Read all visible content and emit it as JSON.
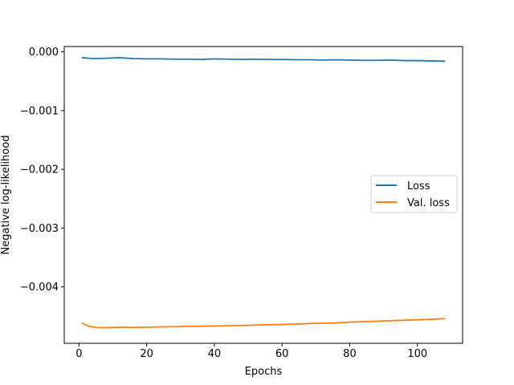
{
  "chart_data": {
    "type": "line",
    "title": "",
    "xlabel": "Epochs",
    "ylabel": "Negative log-likelihood",
    "xlim": [
      -4.35,
      113.35
    ],
    "ylim": [
      -0.00496,
      9e-05
    ],
    "xticks": [
      0,
      20,
      40,
      60,
      80,
      100
    ],
    "xtick_labels": [
      "0",
      "20",
      "40",
      "60",
      "80",
      "100"
    ],
    "yticks": [
      0,
      -0.001,
      -0.002,
      -0.003,
      -0.004
    ],
    "ytick_labels": [
      "0.000",
      "−0.001",
      "−0.002",
      "−0.003",
      "−0.004"
    ],
    "grid": false,
    "legend_position": "center right",
    "series": [
      {
        "name": "Loss",
        "color": "#1f77b4",
        "x": [
          1,
          4,
          8,
          12,
          16,
          20,
          24,
          28,
          32,
          36,
          40,
          44,
          48,
          52,
          56,
          60,
          64,
          68,
          72,
          76,
          80,
          84,
          88,
          92,
          96,
          100,
          104,
          108
        ],
        "y": [
          -0.0001,
          -0.000115,
          -0.00011,
          -0.0001,
          -0.000115,
          -0.00012,
          -0.00012,
          -0.000125,
          -0.000125,
          -0.00013,
          -0.00012,
          -0.000125,
          -0.00013,
          -0.000125,
          -0.00013,
          -0.00013,
          -0.000135,
          -0.000135,
          -0.00014,
          -0.000135,
          -0.00014,
          -0.000145,
          -0.000145,
          -0.00014,
          -0.00015,
          -0.00015,
          -0.000155,
          -0.00016
        ]
      },
      {
        "name": "Val. loss",
        "color": "#ff7f0e",
        "x": [
          1,
          3,
          5,
          7,
          10,
          13,
          16,
          20,
          25,
          30,
          35,
          40,
          45,
          50,
          55,
          60,
          65,
          70,
          75,
          80,
          85,
          90,
          95,
          100,
          105,
          108
        ],
        "y": [
          -0.00462,
          -0.00467,
          -0.00469,
          -0.004695,
          -0.00469,
          -0.004685,
          -0.00469,
          -0.004685,
          -0.00468,
          -0.004675,
          -0.00467,
          -0.004665,
          -0.00466,
          -0.004655,
          -0.004645,
          -0.00464,
          -0.00463,
          -0.00462,
          -0.004615,
          -0.0046,
          -0.00459,
          -0.00458,
          -0.00457,
          -0.00456,
          -0.00455,
          -0.00454
        ]
      }
    ]
  }
}
